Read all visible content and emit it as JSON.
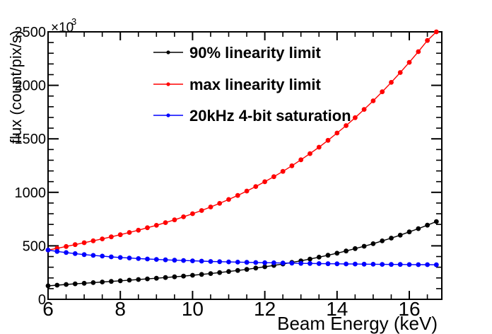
{
  "figure": {
    "background": "#ffffff",
    "frame_color": "#000000"
  },
  "chart_data": {
    "type": "line",
    "title": "",
    "xlabel": "Beam Energy (keV)",
    "ylabel": "flux (count/pix/s)",
    "y_scale_base": "×10",
    "y_scale_exp": "3",
    "y_unit_multiplier": 1000,
    "xlim": [
      6,
      16.9
    ],
    "ylim": [
      0,
      2500
    ],
    "x_major_ticks": [
      6,
      8,
      10,
      12,
      14,
      16
    ],
    "x_minor_step": 0.5,
    "y_major_ticks": [
      0,
      500,
      1000,
      1500,
      2000,
      2500
    ],
    "y_minor_step": 100,
    "grid": false,
    "legend_position": "top-left-inside",
    "x": [
      6.0,
      6.25,
      6.5,
      6.75,
      7.0,
      7.25,
      7.5,
      7.75,
      8.0,
      8.25,
      8.5,
      8.75,
      9.0,
      9.25,
      9.5,
      9.75,
      10.0,
      10.25,
      10.5,
      10.75,
      11.0,
      11.25,
      11.5,
      11.75,
      12.0,
      12.25,
      12.5,
      12.75,
      13.0,
      13.25,
      13.5,
      13.75,
      14.0,
      14.25,
      14.5,
      14.75,
      15.0,
      15.25,
      15.5,
      15.75,
      16.0,
      16.25,
      16.5,
      16.75
    ],
    "series": [
      {
        "name": "90% linearity limit",
        "color": "#000000",
        "marker": "circle",
        "values": [
          126,
          132,
          139,
          145,
          150,
          156,
          162,
          167,
          173,
          179,
          185,
          191,
          197,
          204,
          210,
          217,
          225,
          233,
          241,
          250,
          260,
          270,
          280,
          292,
          304,
          317,
          330,
          345,
          360,
          376,
          394,
          412,
          431,
          452,
          474,
          496,
          520,
          546,
          572,
          600,
          630,
          661,
          693,
          727
        ]
      },
      {
        "name": "max linearity limit",
        "color": "#ff0000",
        "marker": "circle",
        "values": [
          460,
          477,
          494,
          511,
          529,
          547,
          565,
          584,
          604,
          625,
          646,
          669,
          692,
          717,
          743,
          771,
          800,
          830,
          863,
          897,
          933,
          971,
          1012,
          1054,
          1099,
          1146,
          1196,
          1248,
          1304,
          1362,
          1422,
          1486,
          1554,
          1624,
          1698,
          1775,
          1855,
          1940,
          2028,
          2120,
          2215,
          2315,
          2419,
          2500
        ]
      },
      {
        "name": "20kHz 4-bit saturation",
        "color": "#0000ff",
        "marker": "circle",
        "values": [
          460,
          448,
          437,
          427,
          418,
          411,
          404,
          397,
          391,
          386,
          381,
          377,
          373,
          369,
          366,
          363,
          360,
          357,
          354,
          352,
          350,
          348,
          346,
          344,
          342,
          341,
          339,
          338,
          336,
          335,
          334,
          333,
          332,
          331,
          330,
          329,
          328,
          327,
          326,
          326,
          325,
          324,
          324,
          323
        ]
      }
    ]
  }
}
